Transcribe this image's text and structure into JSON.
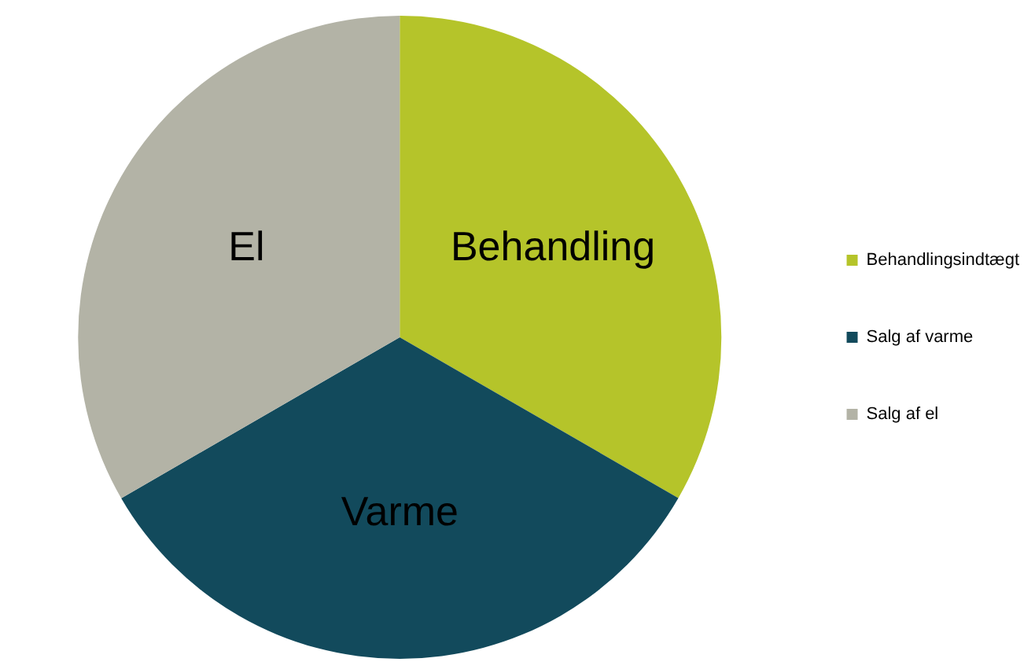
{
  "chart_data": {
    "type": "pie",
    "categories": [
      "Behandlingsindtægt",
      "Salg af varme",
      "Salg af el"
    ],
    "values": [
      33.33,
      33.33,
      33.34
    ],
    "colors": [
      "#b5c42a",
      "#124a5c",
      "#b3b3a6"
    ],
    "annotations": [
      "Behandling",
      "Varme",
      "El"
    ],
    "legend": "right"
  }
}
